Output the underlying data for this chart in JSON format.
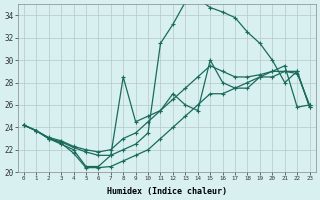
{
  "xlabel": "Humidex (Indice chaleur)",
  "background_color": "#d8f0f0",
  "grid_color": "#b8c8c8",
  "line_color": "#1a6b5a",
  "xlim": [
    -0.5,
    23.5
  ],
  "ylim": [
    20,
    35
  ],
  "xticks": [
    0,
    1,
    2,
    3,
    4,
    5,
    6,
    7,
    8,
    9,
    10,
    11,
    12,
    13,
    14,
    15,
    16,
    17,
    18,
    19,
    20,
    21,
    22,
    23
  ],
  "yticks": [
    20,
    22,
    24,
    26,
    28,
    30,
    32,
    34
  ],
  "curve1_x": [
    0,
    1,
    2,
    3,
    4,
    5,
    6,
    7,
    8,
    9,
    10,
    11,
    12,
    13,
    14,
    15,
    16,
    17,
    18,
    19,
    20,
    21,
    22,
    23
  ],
  "curve1_y": [
    24.2,
    23.7,
    23.0,
    22.5,
    22.0,
    20.5,
    20.5,
    21.5,
    28.5,
    24.5,
    25.0,
    25.5,
    27.0,
    26.0,
    25.5,
    30.0,
    28.0,
    27.5,
    27.5,
    28.5,
    28.5,
    29.0,
    29.0,
    25.8
  ],
  "curve2_x": [
    0,
    1,
    2,
    3,
    4,
    5,
    6,
    7,
    8,
    9,
    10,
    11,
    12,
    13,
    14,
    15,
    16,
    17,
    18,
    19,
    20,
    21,
    22,
    23
  ],
  "curve2_y": [
    24.2,
    23.7,
    23.1,
    22.8,
    22.3,
    22.0,
    21.8,
    22.0,
    23.0,
    23.5,
    24.5,
    25.5,
    26.5,
    27.5,
    28.5,
    29.5,
    29.0,
    28.5,
    28.5,
    28.7,
    29.0,
    29.0,
    28.8,
    26.0
  ],
  "curve3_x": [
    0,
    1,
    2,
    3,
    4,
    5,
    6,
    7,
    8,
    9,
    10,
    11,
    12,
    13,
    14,
    15,
    16,
    17,
    18,
    19,
    20,
    21,
    22,
    23
  ],
  "curve3_y": [
    24.2,
    23.7,
    23.0,
    22.6,
    21.7,
    20.4,
    20.4,
    20.5,
    21.0,
    21.5,
    22.0,
    23.0,
    24.0,
    25.0,
    26.0,
    27.0,
    27.0,
    27.5,
    28.0,
    28.5,
    29.0,
    29.5,
    25.8,
    26.0
  ],
  "curve4_x": [
    0,
    1,
    2,
    3,
    4,
    5,
    6,
    7,
    8,
    9,
    10,
    11,
    12,
    13,
    14,
    15,
    16,
    17,
    18,
    19,
    20,
    21,
    22,
    23
  ],
  "curve4_y": [
    24.2,
    23.7,
    23.0,
    22.7,
    22.2,
    21.8,
    21.5,
    21.5,
    22.0,
    22.5,
    23.5,
    31.5,
    33.2,
    35.2,
    35.5,
    34.7,
    34.3,
    33.8,
    32.5,
    31.5,
    30.0,
    28.0,
    29.0,
    25.8
  ]
}
